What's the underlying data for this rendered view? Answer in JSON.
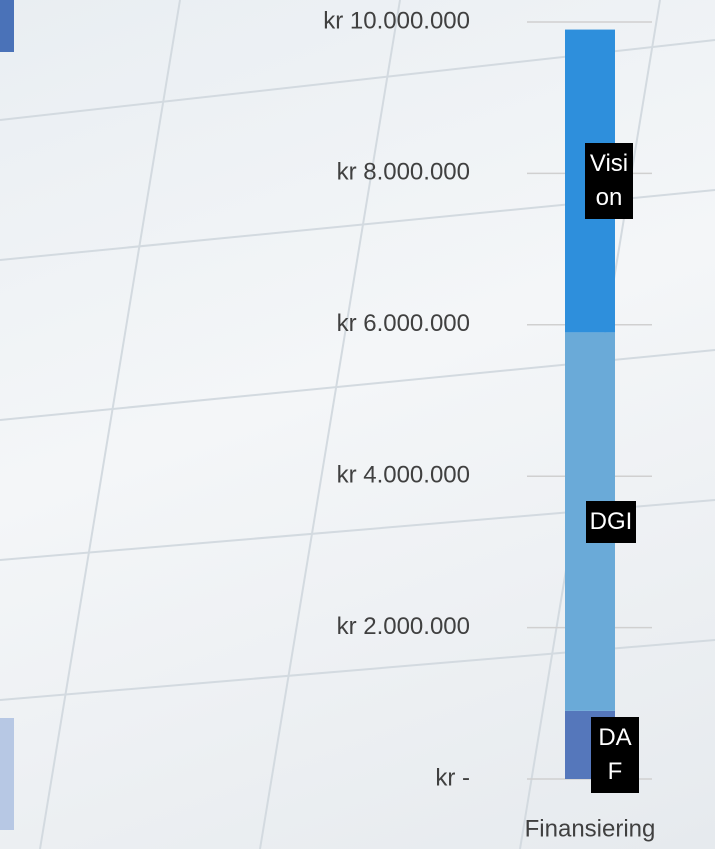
{
  "chart_data": {
    "type": "stacked_bar",
    "categories": [
      "Finansiering"
    ],
    "series": [
      {
        "name": "DAF",
        "color": "#5577bb",
        "values": [
          900000
        ]
      },
      {
        "name": "DGI",
        "color": "#6aaad8",
        "values": [
          5000000
        ]
      },
      {
        "name": "Vision",
        "color": "#2e8fdc",
        "values": [
          4000000
        ]
      }
    ],
    "ylim": [
      0,
      10000000
    ],
    "yticks": [
      {
        "value": 0,
        "label": "kr -"
      },
      {
        "value": 2000000,
        "label": "kr 2.000.000"
      },
      {
        "value": 4000000,
        "label": "kr 4.000.000"
      },
      {
        "value": 6000000,
        "label": "kr 6.000.000"
      },
      {
        "value": 8000000,
        "label": "kr 8.000.000"
      },
      {
        "value": 10000000,
        "label": "kr 10.000.000"
      }
    ],
    "grid": true
  }
}
